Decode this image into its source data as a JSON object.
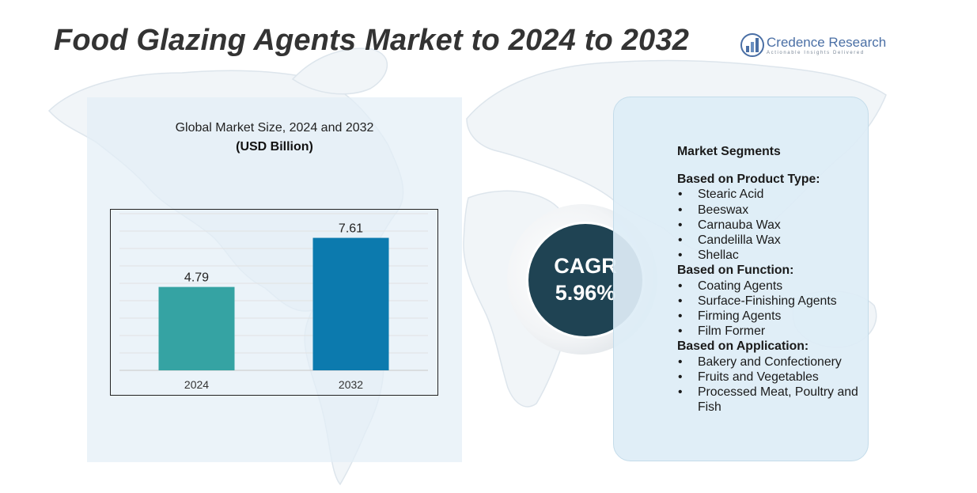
{
  "title": "Food Glazing Agents Market to 2024 to 2032",
  "logo": {
    "name": "Credence Research",
    "tagline": "Actionable Insights Delivered",
    "icon": "bar-chart-logo-icon"
  },
  "chart_data": {
    "type": "bar",
    "title": "Global Market Size,  2024 and 2032",
    "unit": "(USD Billion)",
    "categories": [
      "2024",
      "2032"
    ],
    "values": [
      4.79,
      7.61
    ],
    "value_labels": [
      "4.79",
      "7.61"
    ],
    "ylim": [
      0,
      9
    ],
    "grid": true,
    "colors": [
      "#35a3a3",
      "#0c7aae"
    ]
  },
  "cagr": {
    "label": "CAGR",
    "value": "5.96%"
  },
  "segments": {
    "heading": "Market Segments",
    "groups": [
      {
        "title": "Based on Product Type:",
        "items": [
          "Stearic Acid",
          "Beeswax",
          "Carnauba Wax",
          "Candelilla Wax",
          "Shellac"
        ]
      },
      {
        "title": "Based on Function:",
        "items": [
          "Coating Agents",
          "Surface-Finishing Agents",
          "Firming Agents",
          "Film Former"
        ]
      },
      {
        "title": "Based on Application:",
        "items": [
          "Bakery and Confectionery",
          "Fruits and Vegetables",
          "Processed Meat, Poultry and Fish"
        ]
      }
    ]
  },
  "colors": {
    "title": "#333333",
    "cagr_bg": "#1f4353",
    "panel_bg": "#deedf6",
    "accent": "#4a6fa5"
  }
}
